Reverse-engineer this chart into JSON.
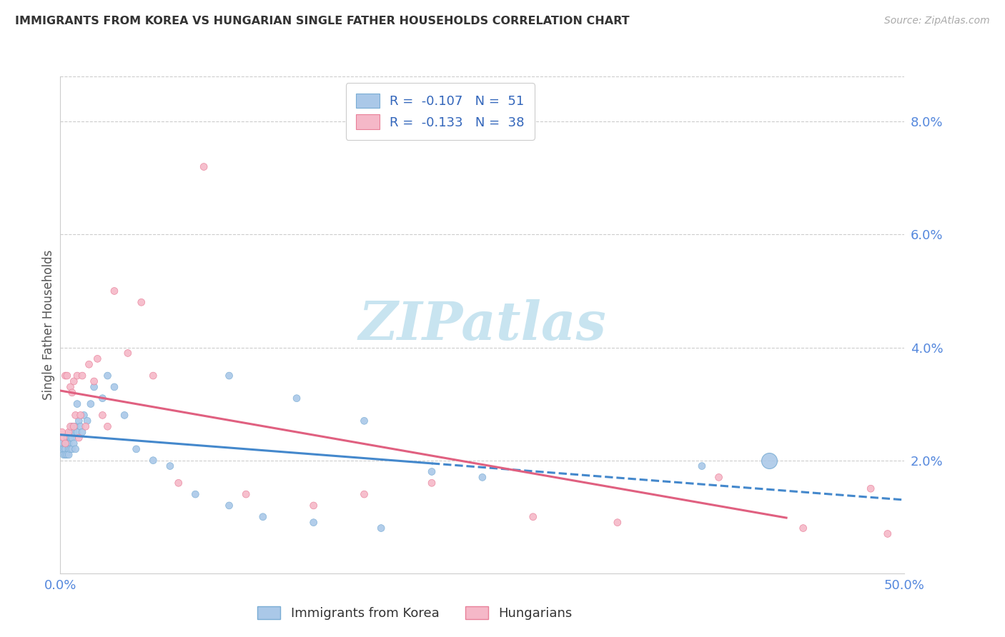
{
  "title": "IMMIGRANTS FROM KOREA VS HUNGARIAN SINGLE FATHER HOUSEHOLDS CORRELATION CHART",
  "source": "Source: ZipAtlas.com",
  "ylabel": "Single Father Households",
  "xlim": [
    0.0,
    0.5
  ],
  "ylim": [
    0.0,
    0.088
  ],
  "ytick_vals": [
    0.0,
    0.02,
    0.04,
    0.06,
    0.08
  ],
  "ytick_labels": [
    "",
    "2.0%",
    "4.0%",
    "6.0%",
    "8.0%"
  ],
  "xtick_vals": [
    0.0,
    0.1,
    0.2,
    0.3,
    0.4,
    0.5
  ],
  "xtick_labels": [
    "0.0%",
    "",
    "",
    "",
    "",
    "50.0%"
  ],
  "korea_color": "#aac8e8",
  "korea_edge": "#7aadd4",
  "korea_trend_color": "#4488cc",
  "hung_color": "#f5b8c8",
  "hung_edge": "#e88099",
  "hung_trend_color": "#e06080",
  "legend_color": "#3366bb",
  "grid_color": "#cccccc",
  "grid_linestyle": "--",
  "watermark_color": "#c8e4f0",
  "title_color": "#333333",
  "source_color": "#aaaaaa",
  "tick_label_color": "#5588dd",
  "background": "#ffffff",
  "korea_x": [
    0.001,
    0.001,
    0.002,
    0.002,
    0.003,
    0.003,
    0.003,
    0.004,
    0.004,
    0.004,
    0.005,
    0.005,
    0.005,
    0.006,
    0.006,
    0.006,
    0.007,
    0.007,
    0.007,
    0.008,
    0.008,
    0.009,
    0.009,
    0.01,
    0.01,
    0.011,
    0.012,
    0.013,
    0.014,
    0.016,
    0.018,
    0.02,
    0.025,
    0.028,
    0.032,
    0.038,
    0.045,
    0.055,
    0.065,
    0.08,
    0.1,
    0.12,
    0.15,
    0.19,
    0.22,
    0.25,
    0.1,
    0.14,
    0.18,
    0.38,
    0.42
  ],
  "korea_y": [
    0.023,
    0.022,
    0.022,
    0.021,
    0.023,
    0.022,
    0.021,
    0.024,
    0.023,
    0.021,
    0.023,
    0.022,
    0.021,
    0.025,
    0.024,
    0.022,
    0.026,
    0.024,
    0.022,
    0.025,
    0.023,
    0.026,
    0.022,
    0.03,
    0.025,
    0.027,
    0.026,
    0.025,
    0.028,
    0.027,
    0.03,
    0.033,
    0.031,
    0.035,
    0.033,
    0.028,
    0.022,
    0.02,
    0.019,
    0.014,
    0.012,
    0.01,
    0.009,
    0.008,
    0.018,
    0.017,
    0.035,
    0.031,
    0.027,
    0.019,
    0.02
  ],
  "korea_sizes": [
    50,
    50,
    50,
    50,
    50,
    50,
    50,
    50,
    50,
    50,
    50,
    50,
    50,
    50,
    50,
    50,
    50,
    50,
    50,
    50,
    50,
    50,
    50,
    50,
    50,
    50,
    50,
    50,
    50,
    50,
    50,
    50,
    50,
    50,
    50,
    50,
    50,
    50,
    50,
    50,
    50,
    50,
    50,
    50,
    50,
    50,
    50,
    50,
    50,
    50,
    250
  ],
  "hung_x": [
    0.001,
    0.002,
    0.003,
    0.003,
    0.004,
    0.005,
    0.006,
    0.006,
    0.007,
    0.008,
    0.008,
    0.009,
    0.01,
    0.011,
    0.012,
    0.013,
    0.015,
    0.017,
    0.02,
    0.022,
    0.025,
    0.028,
    0.032,
    0.04,
    0.048,
    0.055,
    0.07,
    0.085,
    0.11,
    0.15,
    0.18,
    0.22,
    0.28,
    0.33,
    0.39,
    0.44,
    0.48,
    0.49
  ],
  "hung_y": [
    0.025,
    0.024,
    0.035,
    0.023,
    0.035,
    0.025,
    0.033,
    0.026,
    0.032,
    0.034,
    0.026,
    0.028,
    0.035,
    0.024,
    0.028,
    0.035,
    0.026,
    0.037,
    0.034,
    0.038,
    0.028,
    0.026,
    0.05,
    0.039,
    0.048,
    0.035,
    0.016,
    0.072,
    0.014,
    0.012,
    0.014,
    0.016,
    0.01,
    0.009,
    0.017,
    0.008,
    0.015,
    0.007
  ],
  "hung_sizes": [
    50,
    50,
    50,
    50,
    50,
    50,
    50,
    50,
    50,
    50,
    50,
    50,
    50,
    50,
    50,
    50,
    50,
    50,
    50,
    50,
    50,
    50,
    50,
    50,
    50,
    50,
    50,
    50,
    50,
    50,
    50,
    50,
    50,
    50,
    50,
    50,
    50,
    50
  ],
  "korea_R": -0.107,
  "korea_N": 51,
  "hung_R": -0.133,
  "hung_N": 38
}
